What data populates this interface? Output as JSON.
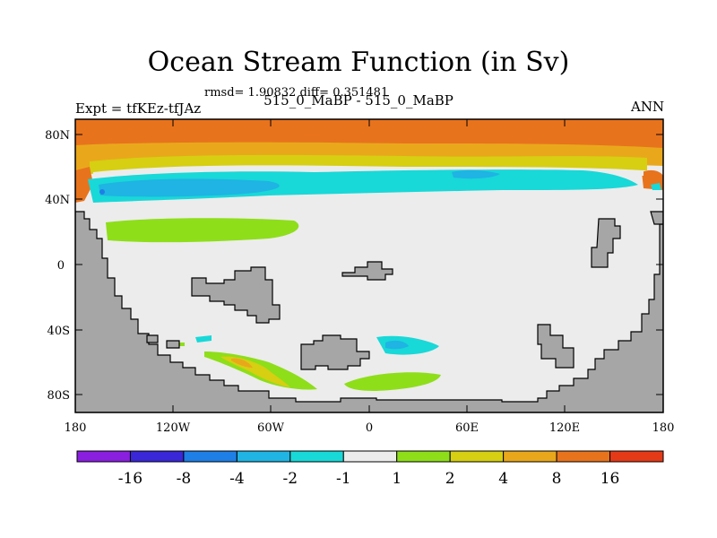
{
  "title": "Ocean Stream Function (in Sv)",
  "stats": "rmsd= 1.90832 diff= 0.351481",
  "left_label": "Expt = tfKEz-tfJAz",
  "center_label": "515_0_MaBP - 515_0_MaBP",
  "right_label": "ANN",
  "axes": {
    "lat_ticks": [
      "80N",
      "40N",
      "0",
      "40S",
      "80S"
    ],
    "lon_ticks": [
      "180",
      "120W",
      "60W",
      "0",
      "60E",
      "120E",
      "180"
    ]
  },
  "colorbar": {
    "labels": [
      "-16",
      "-8",
      "-4",
      "-2",
      "-1",
      "1",
      "2",
      "4",
      "8",
      "16"
    ],
    "colors": [
      "#8a1fe0",
      "#3a27d8",
      "#1e7fe6",
      "#1fb4e3",
      "#19d8d8",
      "#ececec",
      "#8ede1a",
      "#d6cf12",
      "#e9a81b",
      "#e8731d",
      "#e43a18"
    ]
  },
  "colors": {
    "land": "#a6a6a6",
    "ocean": "#ececec",
    "coast": "#000000"
  }
}
